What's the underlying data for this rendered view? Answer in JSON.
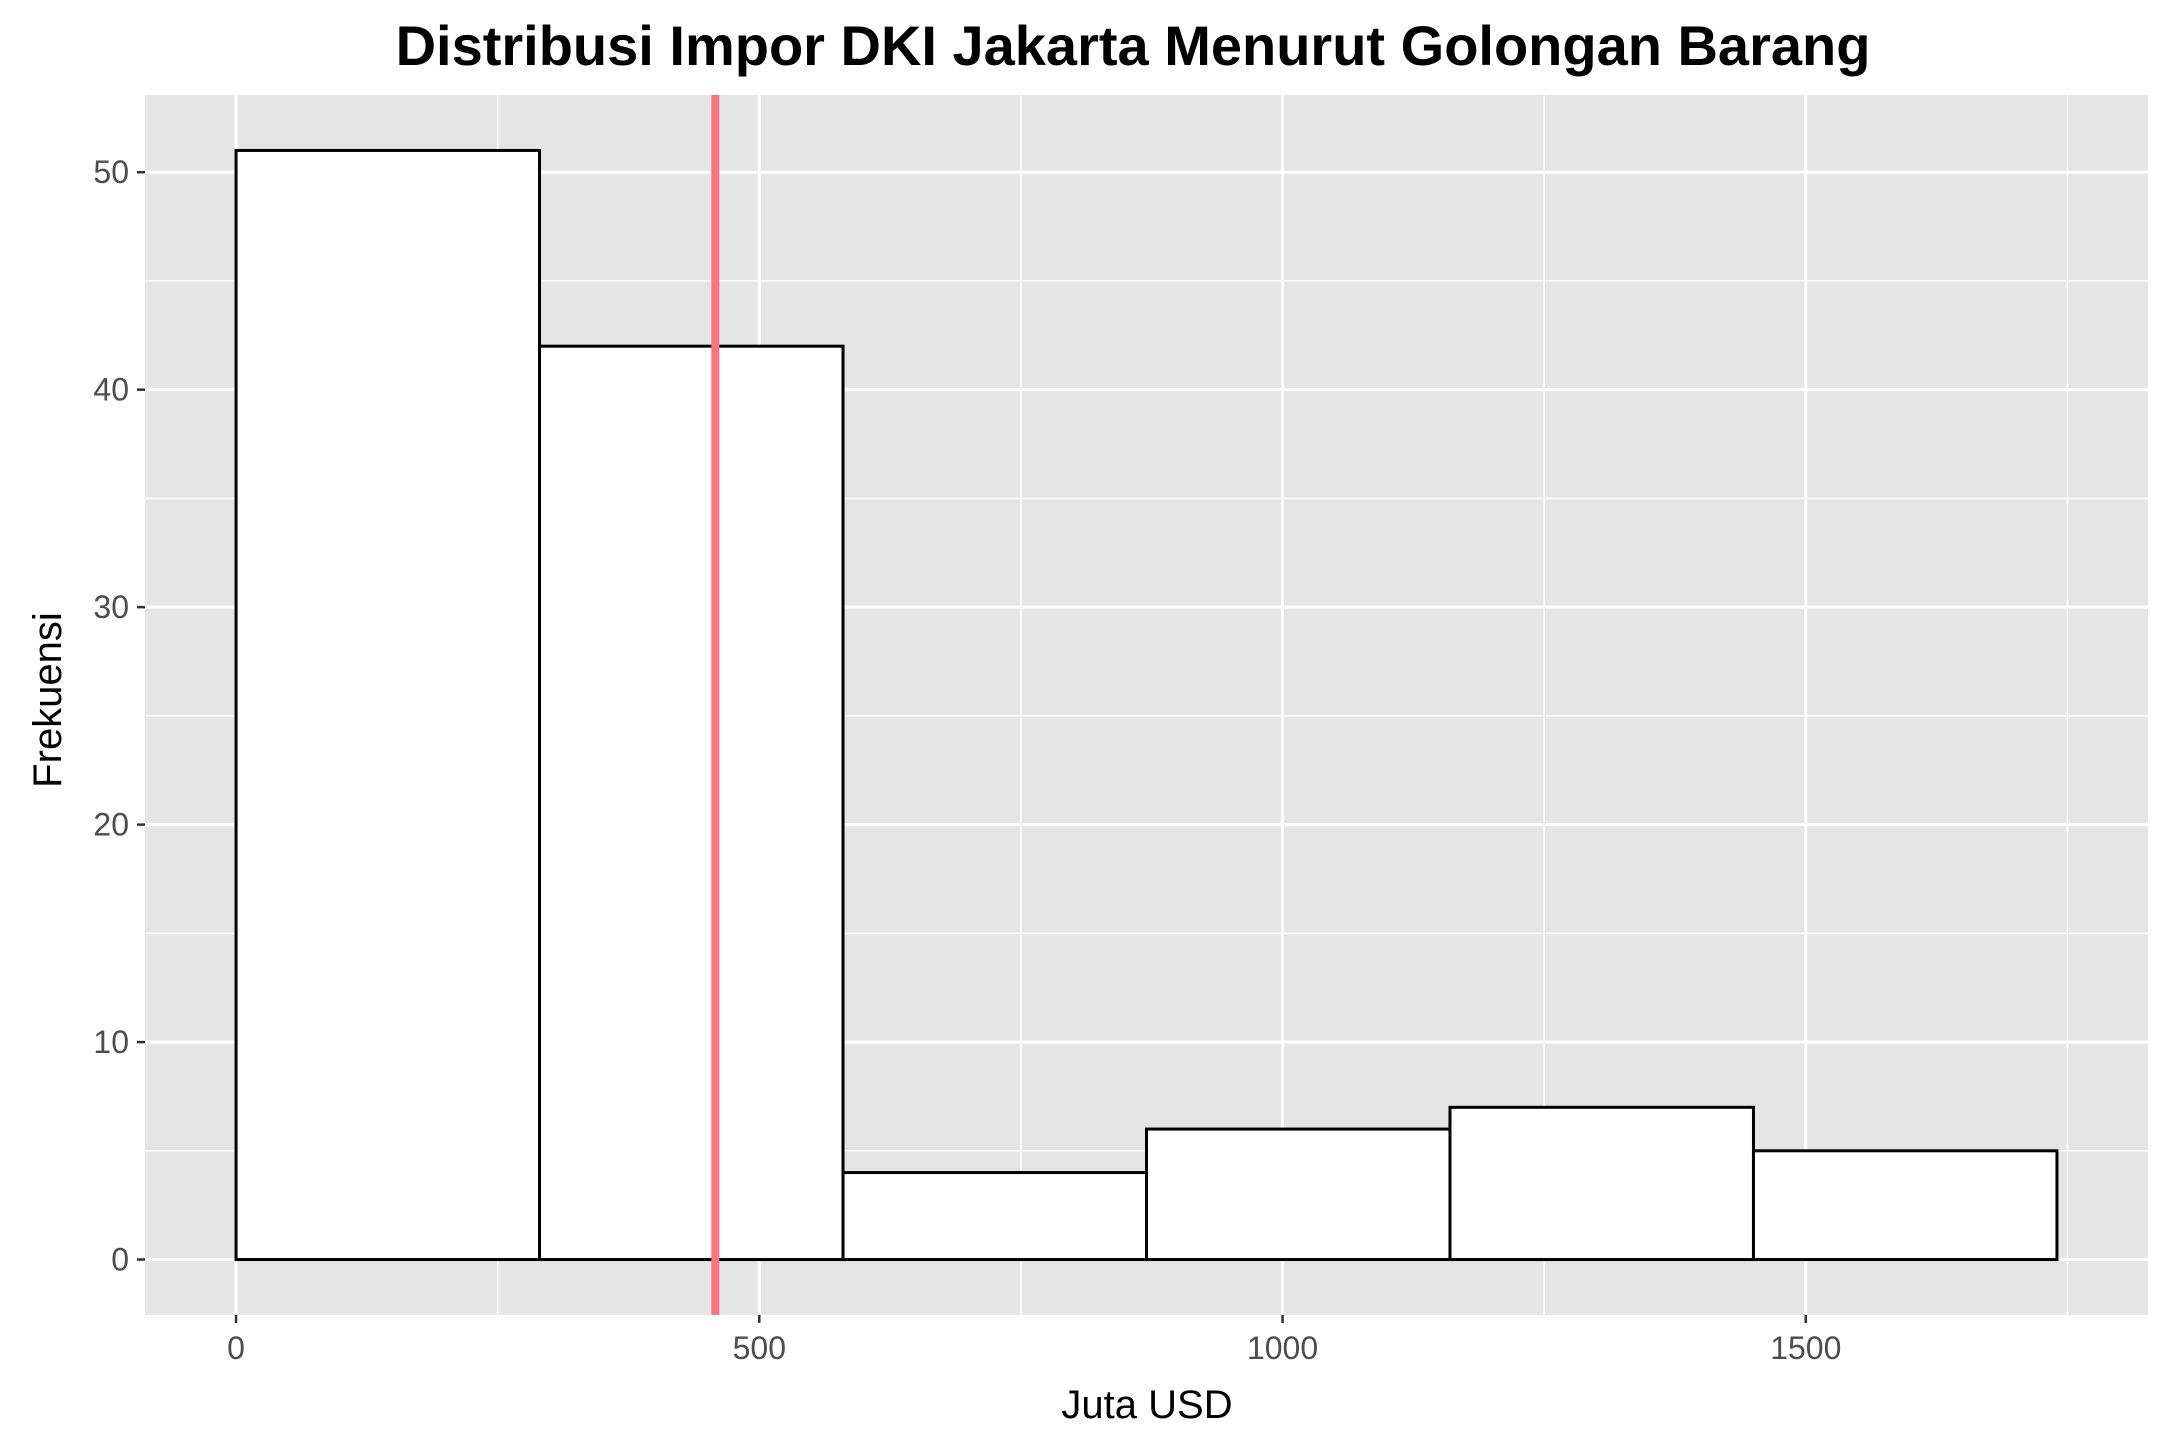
{
  "chart_data": {
    "type": "bar",
    "title": "Distribusi Impor DKI Jakarta Menurut Golongan Barang",
    "xlabel": "Juta USD",
    "ylabel": "Frekuensi",
    "bins": [
      {
        "x0": 0,
        "x1": 290,
        "count": 51
      },
      {
        "x0": 290,
        "x1": 580,
        "count": 42
      },
      {
        "x0": 580,
        "x1": 870,
        "count": 4
      },
      {
        "x0": 870,
        "x1": 1160,
        "count": 6
      },
      {
        "x0": 1160,
        "x1": 1450,
        "count": 7
      },
      {
        "x0": 1450,
        "x1": 1740,
        "count": 5
      }
    ],
    "vline": {
      "x": 458,
      "color": "#f8767d"
    },
    "xlim": [
      -87,
      1827
    ],
    "ylim": [
      -2.55,
      53.55
    ],
    "xticks": [
      0,
      500,
      1000,
      1500
    ],
    "xtick_labels": [
      "0",
      "500",
      "1000",
      "1500"
    ],
    "yticks": [
      0,
      10,
      20,
      30,
      40,
      50
    ],
    "ytick_labels": [
      "0",
      "10",
      "20",
      "30",
      "40",
      "50"
    ],
    "grid": true,
    "panel_color": "#e5e5e5",
    "bar_fill": "#ffffff",
    "bar_stroke": "#000000"
  }
}
